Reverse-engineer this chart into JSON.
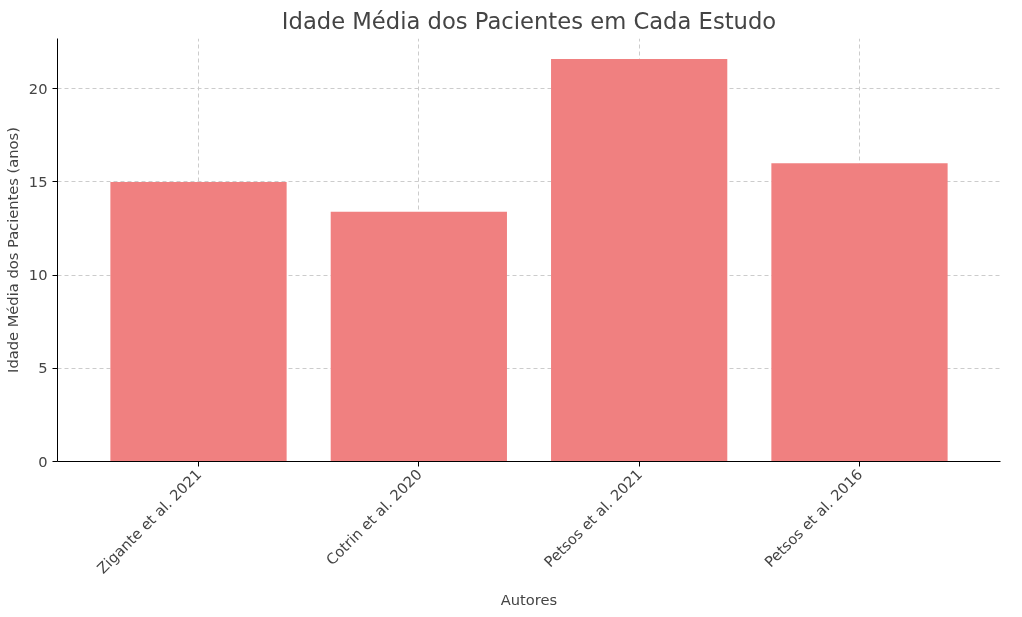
{
  "chart_data": {
    "type": "bar",
    "title": "Idade Média dos Pacientes em Cada Estudo",
    "xlabel": "Autores",
    "ylabel": "Idade Média dos Pacientes (anos)",
    "categories": [
      "Zigante et al. 2021",
      "Cotrin et al. 2020",
      "Petsos et al. 2021",
      "Petsos et al. 2016"
    ],
    "values": [
      15,
      13.4,
      21.6,
      16
    ],
    "color": "#f08080",
    "ylim": [
      0,
      22.7
    ],
    "yticks": [
      0,
      5,
      10,
      15,
      20
    ],
    "grid": true
  }
}
